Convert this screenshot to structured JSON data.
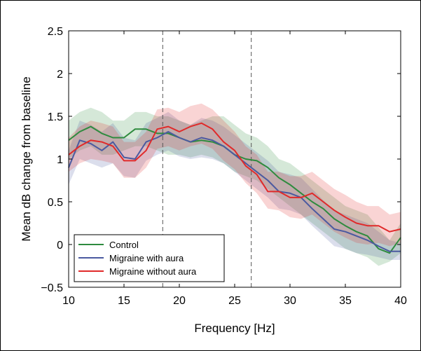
{
  "chart_data": {
    "type": "line",
    "xlabel": "Frequency [Hz]",
    "ylabel": "Mean dB change from baseline",
    "xlim": [
      10,
      40
    ],
    "ylim": [
      -0.5,
      2.5
    ],
    "xticks": [
      10,
      15,
      20,
      25,
      30,
      35,
      40
    ],
    "yticks": [
      -0.5,
      0,
      0.5,
      1,
      1.5,
      2,
      2.5
    ],
    "xtick_labels": [
      "10",
      "15",
      "20",
      "25",
      "30",
      "35",
      "40"
    ],
    "ytick_labels": [
      "−0.5",
      "0",
      "0.5",
      "1",
      "1.5",
      "2",
      "2.5"
    ],
    "grid": false,
    "legend_position": "bottom-left",
    "vlines": [
      18.5,
      26.5
    ],
    "x": [
      10,
      11,
      12,
      13,
      14,
      15,
      16,
      17,
      18,
      19,
      20,
      21,
      22,
      23,
      24,
      25,
      26,
      27,
      28,
      29,
      30,
      31,
      32,
      33,
      34,
      35,
      36,
      37,
      38,
      39,
      40
    ],
    "series": [
      {
        "name": "Control",
        "color": "#2e8b3e",
        "values": [
          1.22,
          1.32,
          1.38,
          1.3,
          1.25,
          1.25,
          1.35,
          1.35,
          1.3,
          1.3,
          1.25,
          1.2,
          1.22,
          1.2,
          1.15,
          1.05,
          1.0,
          0.98,
          0.9,
          0.78,
          0.7,
          0.6,
          0.5,
          0.42,
          0.3,
          0.22,
          0.15,
          0.1,
          -0.05,
          -0.1,
          0.08
        ],
        "lower": [
          1.0,
          1.1,
          1.15,
          1.05,
          1.05,
          1.1,
          1.15,
          1.15,
          1.1,
          1.05,
          1.05,
          1.02,
          1.05,
          1.02,
          0.95,
          0.85,
          0.8,
          0.75,
          0.65,
          0.55,
          0.45,
          0.35,
          0.25,
          0.15,
          0.05,
          -0.05,
          -0.1,
          -0.15,
          -0.25,
          -0.2,
          -0.1
        ],
        "upper": [
          1.45,
          1.55,
          1.6,
          1.55,
          1.45,
          1.45,
          1.55,
          1.55,
          1.5,
          1.5,
          1.45,
          1.4,
          1.45,
          1.5,
          1.5,
          1.4,
          1.3,
          1.25,
          1.15,
          1.0,
          0.95,
          0.85,
          0.75,
          0.65,
          0.55,
          0.45,
          0.4,
          0.35,
          0.2,
          0.05,
          0.25
        ]
      },
      {
        "name": "Migraine with aura",
        "color": "#4b5aa0",
        "values": [
          0.9,
          1.22,
          1.18,
          1.1,
          1.2,
          1.02,
          1.0,
          1.2,
          1.25,
          1.32,
          1.25,
          1.2,
          1.25,
          1.22,
          1.15,
          1.05,
          0.95,
          0.85,
          0.75,
          0.62,
          0.6,
          0.55,
          0.42,
          0.3,
          0.18,
          0.15,
          0.1,
          0.05,
          -0.02,
          -0.08,
          -0.08
        ],
        "lower": [
          0.7,
          1.0,
          0.95,
          0.9,
          0.95,
          0.8,
          0.78,
          0.98,
          1.05,
          1.1,
          1.03,
          1.0,
          1.02,
          1.0,
          0.95,
          0.85,
          0.75,
          0.65,
          0.55,
          0.42,
          0.4,
          0.35,
          0.22,
          0.1,
          -0.02,
          -0.05,
          -0.1,
          -0.12,
          -0.15,
          -0.18,
          -0.18
        ],
        "upper": [
          1.1,
          1.45,
          1.4,
          1.32,
          1.42,
          1.25,
          1.22,
          1.42,
          1.48,
          1.55,
          1.45,
          1.4,
          1.48,
          1.45,
          1.38,
          1.28,
          1.18,
          1.08,
          0.98,
          0.85,
          0.82,
          0.78,
          0.65,
          0.52,
          0.4,
          0.35,
          0.3,
          0.25,
          0.15,
          0.05,
          0.02
        ]
      },
      {
        "name": "Migraine without aura",
        "color": "#e02a2a",
        "values": [
          1.05,
          1.15,
          1.22,
          1.2,
          1.15,
          0.98,
          0.98,
          1.1,
          1.35,
          1.38,
          1.32,
          1.38,
          1.42,
          1.35,
          1.2,
          1.1,
          0.92,
          0.82,
          0.62,
          0.62,
          0.55,
          0.55,
          0.6,
          0.5,
          0.4,
          0.32,
          0.25,
          0.22,
          0.22,
          0.15,
          0.18
        ],
        "lower": [
          0.85,
          0.95,
          1.0,
          0.98,
          0.95,
          0.78,
          0.78,
          0.9,
          1.12,
          1.15,
          1.1,
          1.15,
          1.18,
          1.12,
          0.98,
          0.88,
          0.72,
          0.6,
          0.42,
          0.4,
          0.32,
          0.3,
          0.35,
          0.25,
          0.15,
          0.08,
          0.02,
          0.0,
          0.02,
          -0.02,
          0.02
        ],
        "upper": [
          1.25,
          1.38,
          1.45,
          1.42,
          1.38,
          1.2,
          1.2,
          1.32,
          1.58,
          1.6,
          1.55,
          1.62,
          1.65,
          1.58,
          1.45,
          1.32,
          1.15,
          1.05,
          0.85,
          0.85,
          0.8,
          0.8,
          0.85,
          0.75,
          0.65,
          0.58,
          0.5,
          0.45,
          0.45,
          0.35,
          0.38
        ]
      }
    ]
  }
}
